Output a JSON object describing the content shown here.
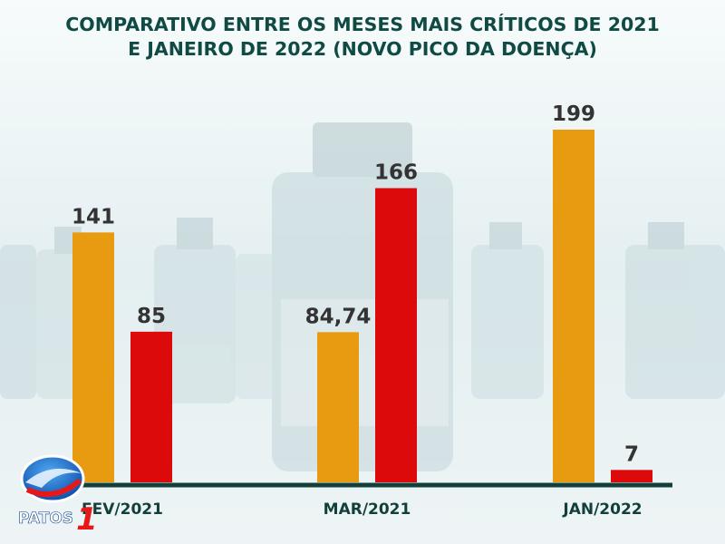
{
  "title_lines": [
    "COMPARATIVO ENTRE OS MESES MAIS CRÍTICOS DE 2021",
    "E JANEIRO DE 2022 (NOVO PICO DA DOENÇA)"
  ],
  "logo": {
    "text": "PATOS",
    "number": "1"
  },
  "colors": {
    "orange": "#e89a10",
    "red": "#dc0a0a",
    "title": "#0f4a44",
    "axis": "#123f3a"
  },
  "chart_data": {
    "type": "bar",
    "categories": [
      "FEV/2021",
      "MAR/2021",
      "JAN/2022"
    ],
    "series": [
      {
        "values": [
          141,
          84.74,
          199
        ],
        "labels": [
          "141",
          "84,74",
          "199"
        ],
        "color": "#e89a10"
      },
      {
        "values": [
          85,
          166,
          7
        ],
        "labels": [
          "85",
          "166",
          "7"
        ],
        "color": "#dc0a0a"
      }
    ],
    "ylim": [
      0,
      210
    ],
    "grid": false,
    "legend": "none"
  }
}
